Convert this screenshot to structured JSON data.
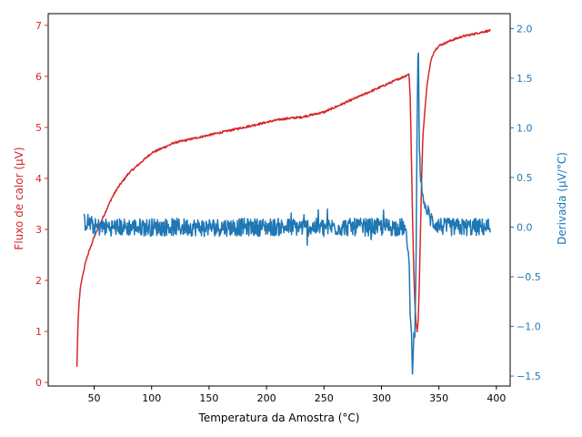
{
  "chart_data": {
    "type": "line",
    "xlabel": "Temperatura da Amostra (°C)",
    "ylabel_left": "Fluxo de calor (µV)",
    "ylabel_right": "Derivada (µV/°C)",
    "xlim": [
      10,
      412
    ],
    "ylim_left": [
      -0.07,
      7.23
    ],
    "ylim_right": [
      -1.6,
      2.15
    ],
    "x_ticks": [
      50,
      100,
      150,
      200,
      250,
      300,
      350,
      400
    ],
    "y_left_ticks": [
      0,
      1,
      2,
      3,
      4,
      5,
      6,
      7
    ],
    "y_right_ticks": [
      -1.5,
      -1.0,
      -0.5,
      0.0,
      0.5,
      1.0,
      1.5,
      2.0
    ],
    "y_right_tick_labels": [
      "−1.5",
      "−1.0",
      "−0.5",
      "0.0",
      "0.5",
      "1.0",
      "1.5",
      "2.0"
    ],
    "grid": false,
    "colors": {
      "left": "#d62728",
      "right": "#1f77b4",
      "axis": "#000000"
    },
    "series": [
      {
        "axis": "left",
        "color": "#d62728",
        "noise": 0.02,
        "x": [
          35,
          35.5,
          36,
          37,
          38,
          40,
          43,
          46,
          50,
          55,
          60,
          65,
          70,
          80,
          90,
          100,
          110,
          120,
          130,
          140,
          150,
          160,
          170,
          180,
          190,
          200,
          210,
          220,
          230,
          240,
          250,
          260,
          270,
          280,
          290,
          300,
          310,
          315,
          320,
          324,
          325,
          326,
          327,
          328,
          329,
          330,
          331,
          332,
          333,
          334,
          335,
          336,
          338,
          340,
          343,
          346,
          350,
          355,
          360,
          370,
          380,
          390,
          395
        ],
        "y": [
          0.3,
          0.8,
          1.2,
          1.6,
          1.85,
          2.1,
          2.4,
          2.6,
          2.85,
          3.1,
          3.35,
          3.6,
          3.8,
          4.1,
          4.3,
          4.5,
          4.6,
          4.7,
          4.75,
          4.8,
          4.85,
          4.9,
          4.95,
          5.0,
          5.05,
          5.1,
          5.15,
          5.18,
          5.2,
          5.25,
          5.3,
          5.4,
          5.5,
          5.6,
          5.7,
          5.8,
          5.9,
          5.95,
          6.0,
          6.05,
          5.6,
          4.5,
          3.3,
          2.3,
          1.6,
          1.2,
          1.0,
          1.2,
          2.0,
          3.0,
          4.0,
          4.8,
          5.4,
          5.9,
          6.3,
          6.5,
          6.6,
          6.65,
          6.7,
          6.78,
          6.83,
          6.88,
          6.9
        ]
      },
      {
        "axis": "right",
        "color": "#1f77b4",
        "noise": 0.09,
        "x": [
          41,
          45,
          50,
          100,
          150,
          200,
          250,
          300,
          320,
          324,
          325,
          326,
          327,
          328,
          329,
          330,
          331,
          332,
          333,
          334,
          335,
          336,
          337,
          338,
          340,
          342,
          345,
          350,
          355,
          360,
          380,
          395
        ],
        "y": [
          0.05,
          0.05,
          0.0,
          0.0,
          0.0,
          0.0,
          0.0,
          0.0,
          0.0,
          -0.3,
          -0.9,
          -1.0,
          -1.5,
          -1.1,
          -1.1,
          -0.5,
          1.0,
          1.95,
          0.8,
          0.5,
          0.4,
          0.3,
          0.25,
          0.2,
          0.15,
          0.1,
          0.05,
          0.02,
          0.0,
          0.0,
          0.0,
          0.0
        ]
      }
    ]
  }
}
